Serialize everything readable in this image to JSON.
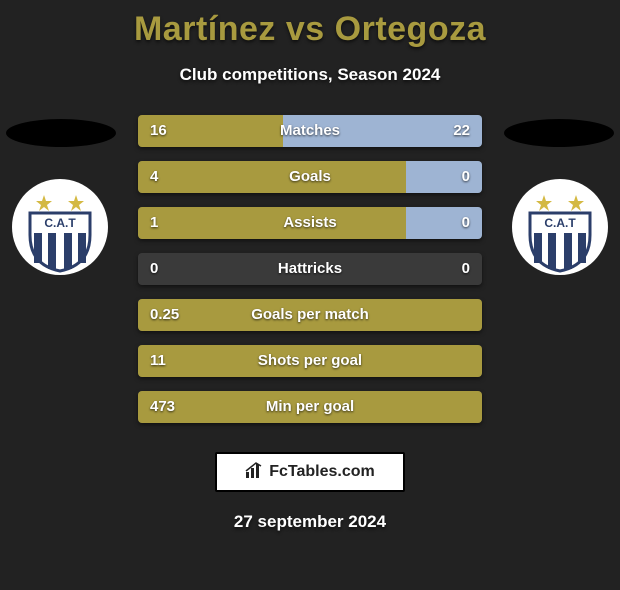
{
  "title": {
    "player1": "Martínez",
    "vs": "vs",
    "player2": "Ortegoza"
  },
  "subtitle": "Club competitions, Season 2024",
  "colors": {
    "bg": "#222222",
    "title": "#a89a3f",
    "bar_track": "#3a3a3a",
    "bar_left": "#a89a3f",
    "bar_right": "#9eb4d3",
    "text": "#ffffff"
  },
  "crest": {
    "outer_bg": "#ffffff",
    "star": "#d4b942",
    "shield_stripe": "#2b3e6a",
    "shield_bg": "#ffffff",
    "letters": "C.A.T"
  },
  "bars": [
    {
      "label": "Matches",
      "left_val": "16",
      "right_val": "22",
      "left_pct": 42.1,
      "right_pct": 57.9
    },
    {
      "label": "Goals",
      "left_val": "4",
      "right_val": "0",
      "left_pct": 78.0,
      "right_pct": 22.0
    },
    {
      "label": "Assists",
      "left_val": "1",
      "right_val": "0",
      "left_pct": 78.0,
      "right_pct": 22.0
    },
    {
      "label": "Hattricks",
      "left_val": "0",
      "right_val": "0",
      "left_pct": 0.0,
      "right_pct": 0.0
    },
    {
      "label": "Goals per match",
      "left_val": "0.25",
      "right_val": "",
      "left_pct": 100.0,
      "right_pct": 0.0
    },
    {
      "label": "Shots per goal",
      "left_val": "11",
      "right_val": "",
      "left_pct": 100.0,
      "right_pct": 0.0
    },
    {
      "label": "Min per goal",
      "left_val": "473",
      "right_val": "",
      "left_pct": 100.0,
      "right_pct": 0.0
    }
  ],
  "footer": {
    "site": "FcTables.com"
  },
  "date": "27 september 2024"
}
